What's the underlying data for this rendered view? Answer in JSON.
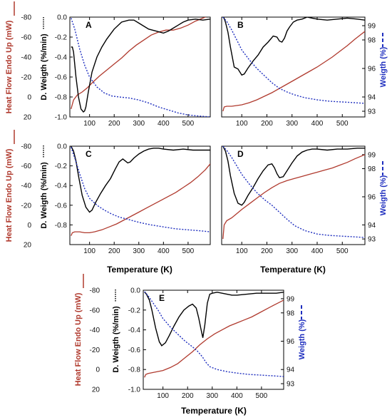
{
  "colors": {
    "heat_flow": "#b03a2e",
    "dtg": "#000000",
    "weight": "#1f2fbf",
    "heat_axis_text": "#b03a2e",
    "weight_axis_text": "#1f2fbf"
  },
  "axis_titles": {
    "heat_flow": "Heat Flow Endo Up (mW)",
    "dtg": "D. Weigth (%/min)",
    "weight": "Weigth (%)",
    "x": "Temperature (K)"
  },
  "chart_data": [
    {
      "type": "line",
      "panel": "A",
      "xlim": [
        20,
        590
      ],
      "x_ticks": [
        100,
        200,
        300,
        400,
        500
      ],
      "heat_ylim": [
        20,
        -80
      ],
      "heat_ticks": [
        -80,
        -60,
        -40,
        -20,
        0,
        20
      ],
      "dtg_ylim": [
        -1.0,
        0.0
      ],
      "dtg_ticks": [
        0.0,
        -0.2,
        -0.4,
        -0.6,
        -0.8,
        -1.0
      ],
      "weight_ylim": null,
      "weight_ticks": [],
      "series": [
        {
          "axis": "heat",
          "style": "heat",
          "x": [
            25,
            35,
            50,
            70,
            90,
            110,
            140,
            170,
            200,
            230,
            260,
            290,
            320,
            350,
            380,
            410,
            440,
            470,
            500,
            530,
            560,
            590
          ],
          "y": [
            12,
            3,
            -2,
            -5,
            -9,
            -14,
            -21,
            -27,
            -33,
            -39,
            -46,
            -52,
            -57,
            -62,
            -65,
            -67,
            -67,
            -69,
            -72,
            -76,
            -79,
            -82
          ]
        },
        {
          "axis": "dtg",
          "style": "dtg",
          "x": [
            25,
            30,
            35,
            45,
            55,
            65,
            75,
            80,
            85,
            95,
            110,
            130,
            150,
            170,
            200,
            230,
            260,
            280,
            300,
            320,
            340,
            370,
            400,
            420,
            440,
            460,
            480,
            500,
            530,
            560,
            590
          ],
          "y": [
            -0.3,
            -0.3,
            -0.35,
            -0.6,
            -0.8,
            -0.92,
            -0.95,
            -0.94,
            -0.9,
            -0.75,
            -0.55,
            -0.4,
            -0.3,
            -0.22,
            -0.12,
            -0.05,
            -0.03,
            -0.03,
            -0.06,
            -0.09,
            -0.12,
            -0.14,
            -0.16,
            -0.14,
            -0.11,
            -0.08,
            -0.05,
            -0.03,
            -0.02,
            -0.03,
            -0.02
          ]
        },
        {
          "axis": "dtg",
          "style": "weight",
          "x": [
            25,
            40,
            60,
            80,
            100,
            130,
            160,
            190,
            220,
            260,
            300,
            340,
            380,
            420,
            460,
            500,
            540,
            590
          ],
          "y": [
            -0.01,
            -0.12,
            -0.32,
            -0.48,
            -0.6,
            -0.7,
            -0.76,
            -0.79,
            -0.8,
            -0.81,
            -0.83,
            -0.86,
            -0.9,
            -0.93,
            -0.96,
            -0.98,
            -0.99,
            -1.0
          ]
        }
      ]
    },
    {
      "type": "line",
      "panel": "B",
      "xlim": [
        20,
        590
      ],
      "x_ticks": [
        100,
        200,
        300,
        400,
        500
      ],
      "heat_ylim": null,
      "heat_ticks": [],
      "dtg_ylim": [
        -1.0,
        0.0
      ],
      "dtg_ticks": [],
      "weight_ylim": [
        92.6,
        99.6
      ],
      "weight_ticks": [
        99,
        98,
        96,
        94,
        93
      ],
      "series": [
        {
          "axis": "weight",
          "style": "heat",
          "x": [
            25,
            30,
            40,
            60,
            80,
            100,
            130,
            160,
            190,
            220,
            250,
            280,
            310,
            340,
            370,
            400,
            430,
            460,
            490,
            520,
            550,
            590
          ],
          "y": [
            93.0,
            93.3,
            93.35,
            93.35,
            93.4,
            93.45,
            93.6,
            93.8,
            94.05,
            94.3,
            94.6,
            94.9,
            95.2,
            95.5,
            95.8,
            96.1,
            96.45,
            96.8,
            97.2,
            97.6,
            98.05,
            98.6
          ]
        },
        {
          "axis": "dtg",
          "style": "dtg",
          "x": [
            25,
            35,
            45,
            55,
            70,
            85,
            100,
            110,
            125,
            145,
            165,
            185,
            205,
            225,
            240,
            250,
            260,
            270,
            280,
            290,
            305,
            320,
            340,
            360,
            380,
            400,
            440,
            480,
            520,
            560,
            590
          ],
          "y": [
            0.02,
            -0.05,
            -0.15,
            -0.3,
            -0.5,
            -0.52,
            -0.58,
            -0.57,
            -0.51,
            -0.44,
            -0.38,
            -0.3,
            -0.25,
            -0.19,
            -0.2,
            -0.24,
            -0.25,
            -0.21,
            -0.14,
            -0.1,
            -0.05,
            -0.03,
            -0.02,
            0.0,
            -0.01,
            -0.02,
            -0.03,
            -0.02,
            -0.01,
            -0.02,
            -0.03
          ]
        },
        {
          "axis": "weight",
          "style": "weight",
          "x": [
            25,
            40,
            60,
            80,
            100,
            130,
            160,
            190,
            220,
            250,
            280,
            310,
            350,
            400,
            450,
            500,
            550,
            590
          ],
          "y": [
            99.6,
            99.3,
            98.7,
            98.0,
            97.3,
            96.6,
            96.0,
            95.5,
            95.0,
            94.6,
            94.35,
            94.15,
            93.95,
            93.8,
            93.7,
            93.65,
            93.6,
            93.55
          ]
        }
      ]
    },
    {
      "type": "line",
      "panel": "C",
      "xlim": [
        20,
        590
      ],
      "x_ticks": [
        100,
        200,
        300,
        400,
        500
      ],
      "heat_ylim": [
        20,
        -80
      ],
      "heat_ticks": [
        -80,
        -60,
        -40,
        -20,
        0,
        20
      ],
      "dtg_ylim": [
        -1.0,
        0.0
      ],
      "dtg_ticks": [
        0.0,
        -0.2,
        -0.4,
        -0.6,
        -0.8
      ],
      "weight_ylim": null,
      "weight_ticks": [],
      "series": [
        {
          "axis": "heat",
          "style": "heat",
          "x": [
            25,
            30,
            40,
            60,
            80,
            100,
            120,
            150,
            180,
            210,
            240,
            270,
            300,
            330,
            360,
            390,
            420,
            450,
            480,
            510,
            540,
            570,
            590
          ],
          "y": [
            11,
            8,
            7,
            7,
            8,
            8,
            7,
            5,
            2,
            -1,
            -5,
            -9,
            -13,
            -17,
            -21,
            -25,
            -29,
            -33,
            -38,
            -43,
            -49,
            -56,
            -62
          ]
        },
        {
          "axis": "dtg",
          "style": "dtg",
          "x": [
            25,
            35,
            45,
            55,
            70,
            85,
            100,
            110,
            125,
            145,
            165,
            185,
            205,
            220,
            235,
            245,
            255,
            265,
            280,
            300,
            320,
            340,
            360,
            380,
            400,
            440,
            480,
            520,
            560,
            590
          ],
          "y": [
            0.0,
            -0.05,
            -0.15,
            -0.3,
            -0.5,
            -0.62,
            -0.67,
            -0.65,
            -0.57,
            -0.48,
            -0.4,
            -0.33,
            -0.23,
            -0.16,
            -0.13,
            -0.15,
            -0.17,
            -0.16,
            -0.12,
            -0.08,
            -0.05,
            -0.03,
            -0.02,
            -0.02,
            -0.03,
            -0.04,
            -0.03,
            -0.04,
            -0.04,
            -0.04
          ]
        },
        {
          "axis": "dtg",
          "style": "weight",
          "x": [
            25,
            40,
            60,
            80,
            100,
            130,
            160,
            190,
            220,
            250,
            280,
            310,
            350,
            400,
            450,
            500,
            550,
            590
          ],
          "y": [
            -0.01,
            -0.12,
            -0.28,
            -0.43,
            -0.53,
            -0.6,
            -0.65,
            -0.69,
            -0.72,
            -0.74,
            -0.76,
            -0.78,
            -0.8,
            -0.82,
            -0.84,
            -0.85,
            -0.86,
            -0.87
          ]
        }
      ]
    },
    {
      "type": "line",
      "panel": "D",
      "xlim": [
        20,
        590
      ],
      "x_ticks": [
        100,
        200,
        300,
        400,
        500
      ],
      "heat_ylim": null,
      "heat_ticks": [],
      "dtg_ylim": [
        -1.0,
        0.0
      ],
      "dtg_ticks": [],
      "weight_ylim": [
        92.6,
        99.6
      ],
      "weight_ticks": [
        99,
        98,
        96,
        94,
        93
      ],
      "series": [
        {
          "axis": "weight",
          "style": "heat",
          "x": [
            25,
            30,
            40,
            60,
            80,
            100,
            130,
            160,
            190,
            220,
            250,
            280,
            310,
            340,
            370,
            400,
            430,
            460,
            490,
            520,
            550,
            590
          ],
          "y": [
            93.0,
            94.0,
            94.3,
            94.5,
            94.8,
            95.1,
            95.5,
            95.9,
            96.3,
            96.65,
            96.95,
            97.15,
            97.3,
            97.45,
            97.6,
            97.75,
            97.9,
            98.05,
            98.25,
            98.45,
            98.7,
            99.0
          ]
        },
        {
          "axis": "dtg",
          "style": "dtg",
          "x": [
            25,
            35,
            45,
            55,
            70,
            85,
            100,
            110,
            125,
            145,
            165,
            185,
            205,
            220,
            230,
            240,
            250,
            265,
            280,
            300,
            320,
            340,
            360,
            380,
            400,
            440,
            480,
            520,
            560,
            590
          ],
          "y": [
            0.0,
            -0.05,
            -0.15,
            -0.3,
            -0.48,
            -0.58,
            -0.6,
            -0.57,
            -0.5,
            -0.42,
            -0.33,
            -0.25,
            -0.19,
            -0.18,
            -0.22,
            -0.28,
            -0.32,
            -0.31,
            -0.25,
            -0.17,
            -0.1,
            -0.06,
            -0.04,
            -0.03,
            -0.03,
            -0.04,
            -0.03,
            -0.03,
            -0.02,
            -0.02
          ]
        },
        {
          "axis": "weight",
          "style": "weight",
          "x": [
            25,
            40,
            60,
            80,
            100,
            130,
            160,
            190,
            220,
            250,
            280,
            310,
            350,
            400,
            450,
            500,
            550,
            590
          ],
          "y": [
            99.6,
            99.3,
            98.8,
            98.2,
            97.6,
            96.9,
            96.3,
            95.8,
            95.4,
            94.9,
            94.4,
            93.95,
            93.6,
            93.35,
            93.25,
            93.2,
            93.15,
            93.1
          ]
        }
      ]
    },
    {
      "type": "line",
      "panel": "E",
      "xlim": [
        20,
        590
      ],
      "x_ticks": [
        100,
        200,
        300,
        400,
        500
      ],
      "heat_ylim": [
        20,
        -80
      ],
      "heat_ticks": [
        -80,
        -60,
        -40,
        -20,
        0,
        20
      ],
      "dtg_ylim": [
        -1.0,
        0.0
      ],
      "dtg_ticks": [
        0.0,
        -0.2,
        -0.4,
        -0.6,
        -0.8,
        -1.0
      ],
      "weight_ylim": [
        92.6,
        99.6
      ],
      "weight_ticks": [
        99,
        98,
        96,
        94,
        93
      ],
      "series": [
        {
          "axis": "heat",
          "style": "heat",
          "x": [
            25,
            30,
            40,
            60,
            80,
            100,
            130,
            160,
            190,
            220,
            250,
            280,
            310,
            340,
            370,
            400,
            430,
            460,
            490,
            520,
            550,
            590
          ],
          "y": [
            8,
            5,
            4,
            3,
            2,
            1,
            -2,
            -6,
            -12,
            -18,
            -25,
            -31,
            -36,
            -40,
            -44,
            -47,
            -50,
            -53,
            -57,
            -61,
            -65,
            -70
          ]
        },
        {
          "axis": "dtg",
          "style": "dtg",
          "x": [
            25,
            30,
            35,
            45,
            55,
            70,
            85,
            95,
            110,
            125,
            145,
            165,
            185,
            205,
            220,
            235,
            245,
            255,
            262,
            270,
            280,
            290,
            300,
            320,
            340,
            360,
            380,
            400,
            440,
            480,
            520,
            560,
            590
          ],
          "y": [
            -0.02,
            -0.03,
            -0.05,
            -0.1,
            -0.2,
            -0.38,
            -0.52,
            -0.56,
            -0.53,
            -0.46,
            -0.36,
            -0.27,
            -0.2,
            -0.16,
            -0.14,
            -0.18,
            -0.28,
            -0.4,
            -0.48,
            -0.35,
            -0.13,
            -0.04,
            -0.03,
            -0.02,
            -0.03,
            -0.04,
            -0.05,
            -0.05,
            -0.04,
            -0.03,
            -0.03,
            -0.03,
            -0.02
          ]
        },
        {
          "axis": "weight",
          "style": "weight",
          "x": [
            25,
            40,
            60,
            80,
            100,
            130,
            160,
            190,
            220,
            240,
            260,
            275,
            290,
            320,
            360,
            400,
            450,
            500,
            550,
            590
          ],
          "y": [
            99.5,
            99.2,
            98.7,
            98.2,
            97.6,
            97.0,
            96.5,
            96.0,
            95.6,
            95.3,
            94.9,
            94.5,
            94.2,
            94.0,
            93.85,
            93.75,
            93.65,
            93.6,
            93.55,
            93.5
          ]
        }
      ]
    }
  ],
  "panels": [
    {
      "label": "A",
      "has_x_title": false
    },
    {
      "label": "B",
      "has_x_title": false
    },
    {
      "label": "C",
      "has_x_title": true
    },
    {
      "label": "D",
      "has_x_title": true
    },
    {
      "label": "E",
      "has_x_title": true
    }
  ],
  "side_titles": [
    {
      "panel": "A",
      "heat": true,
      "dtg": true,
      "weight": false
    },
    {
      "panel": "B",
      "heat": false,
      "dtg": false,
      "weight": true
    },
    {
      "panel": "C",
      "heat": true,
      "dtg": true,
      "weight": false
    },
    {
      "panel": "D",
      "heat": false,
      "dtg": false,
      "weight": true
    },
    {
      "panel": "E",
      "heat": true,
      "dtg": true,
      "weight": true
    }
  ]
}
